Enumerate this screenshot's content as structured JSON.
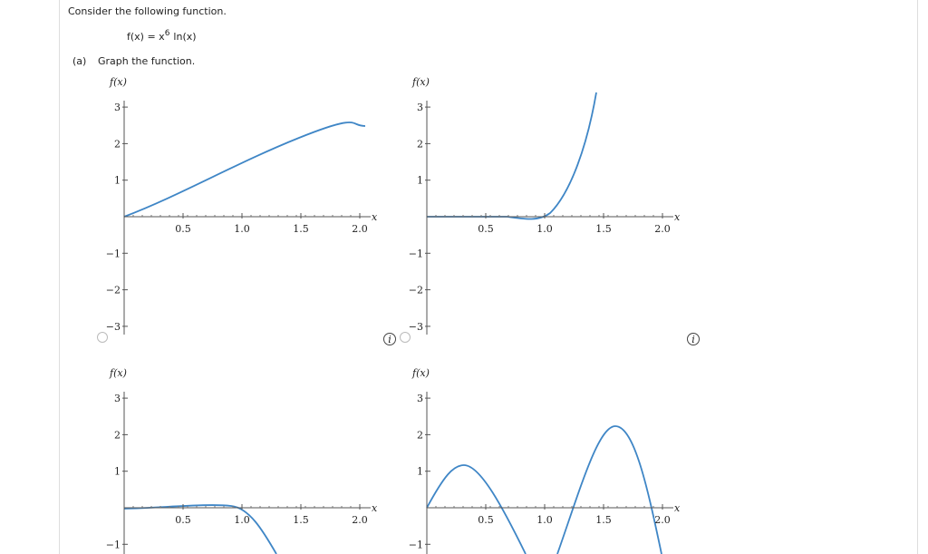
{
  "header": {
    "instruction": "Consider the following function.",
    "function": {
      "lhs": "f(x) = x",
      "exponent": "6",
      "rhs": "ln(x)"
    }
  },
  "part_a": {
    "label": "(a)",
    "text": "Graph the function."
  },
  "graphs": [
    {
      "y_label": "f(x)",
      "x_label": "x",
      "xticks": [
        0.5,
        {
          "value": 1,
          "label": "1.0"
        },
        1.5,
        {
          "value": 2,
          "label": "2.0"
        }
      ],
      "yticks": [
        3,
        2,
        1,
        {
          "value": -1,
          "label": "−1"
        },
        {
          "value": -2,
          "label": "−2"
        },
        {
          "value": -3,
          "label": "−3"
        }
      ]
    },
    {
      "y_label": "f(x)",
      "x_label": "x",
      "xticks": [
        0.5,
        {
          "value": 1,
          "label": "1.0"
        },
        1.5,
        {
          "value": 2,
          "label": "2.0"
        }
      ],
      "yticks": [
        3,
        2,
        1,
        {
          "value": -1,
          "label": "−1"
        },
        {
          "value": -2,
          "label": "−2"
        },
        {
          "value": -3,
          "label": "−3"
        }
      ]
    },
    {
      "y_label": "f(x)",
      "x_label": "x",
      "xticks": [
        0.5,
        {
          "value": 1,
          "label": "1.0"
        },
        1.5,
        {
          "value": 2,
          "label": "2.0"
        }
      ],
      "yticks": [
        3,
        2,
        1,
        {
          "value": -1,
          "label": "−1"
        }
      ]
    },
    {
      "y_label": "f(x)",
      "x_label": "x",
      "xticks": [
        0.5,
        {
          "value": 1,
          "label": "1.0"
        },
        1.5,
        {
          "value": 2,
          "label": "2.0"
        }
      ],
      "yticks": [
        3,
        2,
        1,
        {
          "value": -1,
          "label": "−1"
        }
      ]
    }
  ]
}
